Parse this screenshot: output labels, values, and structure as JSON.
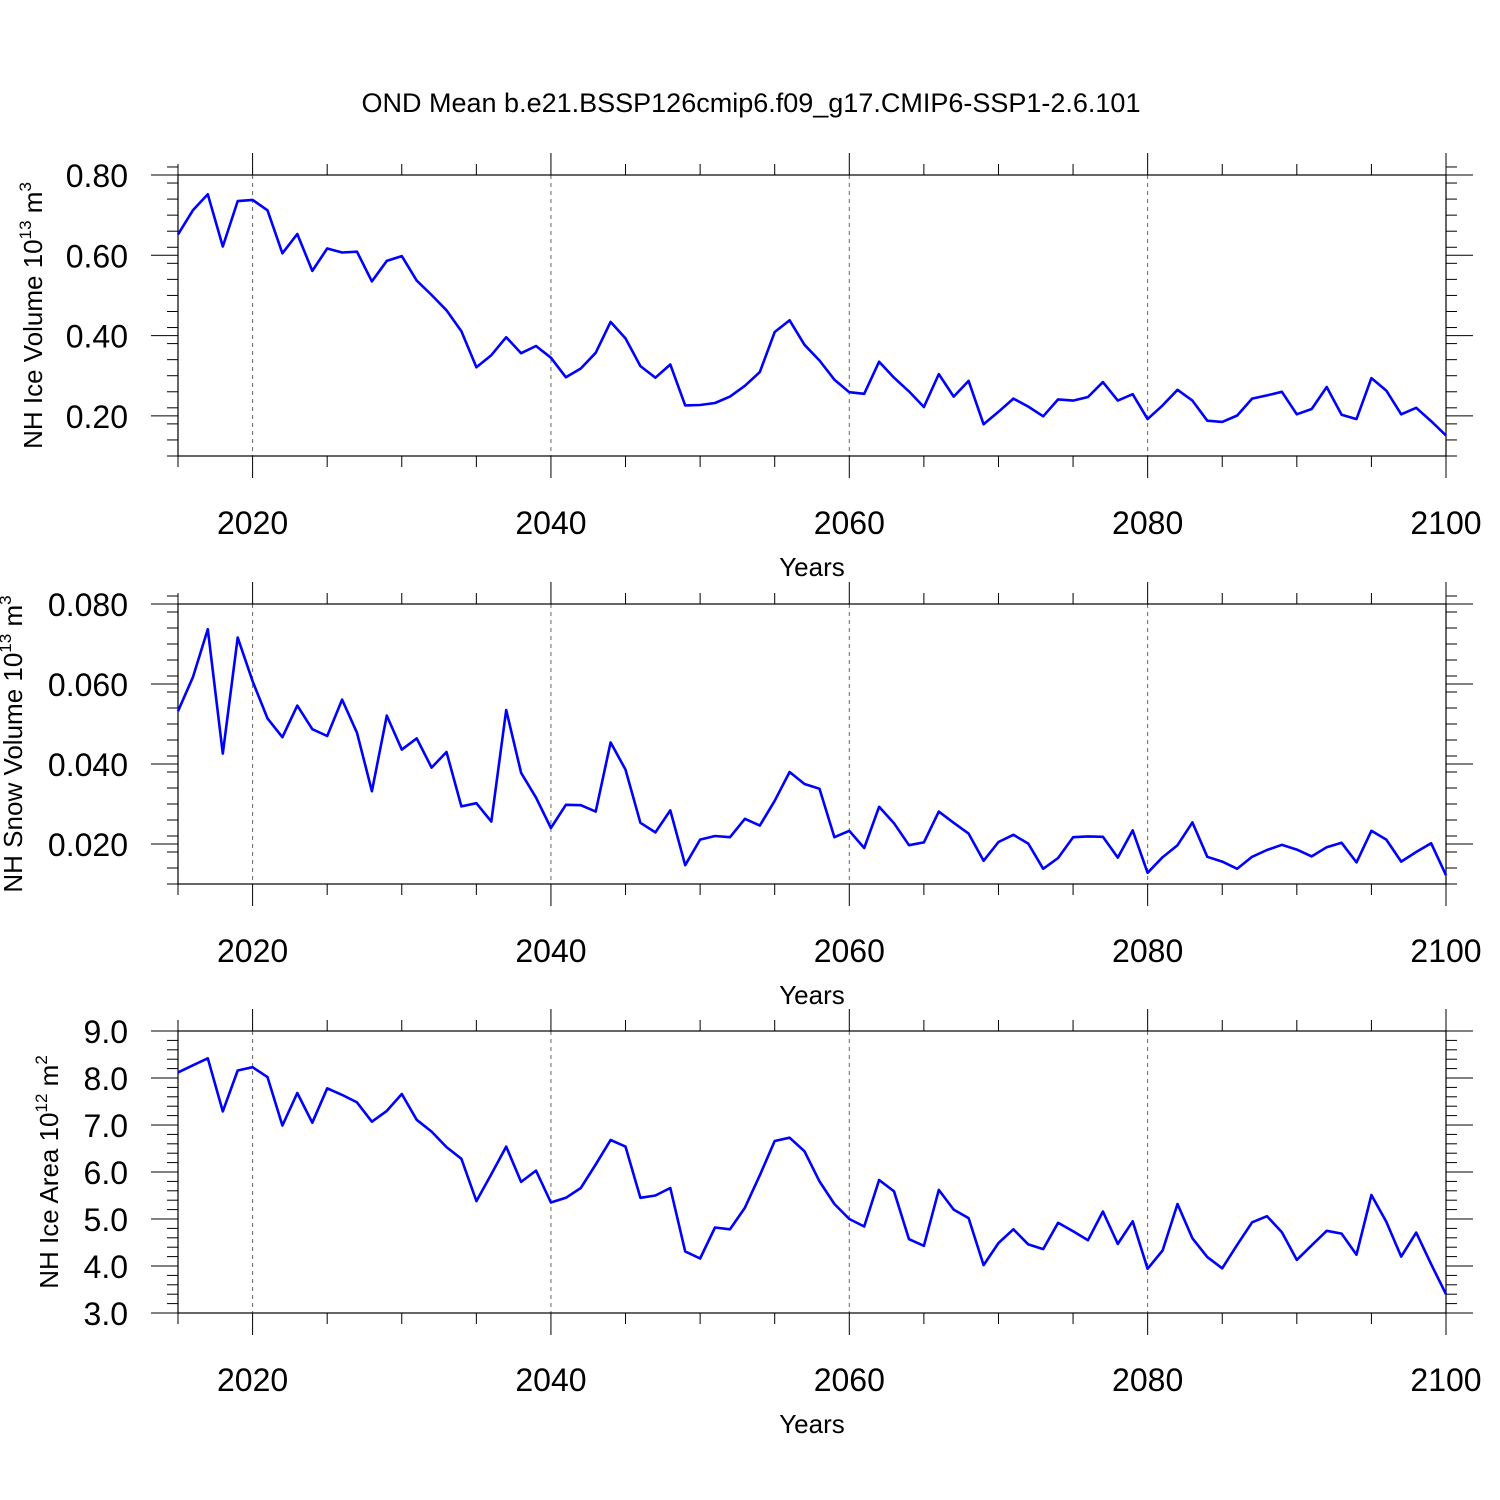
{
  "title": "OND Mean b.e21.BSSP126cmip6.f09_g17.CMIP6-SSP1-2.6.101",
  "line_color": "#0000ff",
  "chart_data": [
    {
      "type": "line",
      "ylabel": {
        "base": "NH Ice Volume 10",
        "exp": "13",
        "unit": " m",
        "unit_exp": "3"
      },
      "xlabel": "Years",
      "xlim": [
        2015,
        2100
      ],
      "ylim": [
        0.1,
        0.8
      ],
      "x_ticks": [
        2020,
        2040,
        2060,
        2080,
        2100
      ],
      "x_tick_labels": [
        "2020",
        "2040",
        "2060",
        "2080",
        "2100"
      ],
      "y_ticks": [
        0.2,
        0.4,
        0.6,
        0.8
      ],
      "y_tick_labels": [
        "0.20",
        "0.40",
        "0.60",
        "0.80"
      ],
      "y_minor_step": 0.04,
      "grid": "dashed vertical at major x ticks",
      "x_start": 2015,
      "values": [
        0.652,
        0.712,
        0.752,
        0.622,
        0.735,
        0.738,
        0.712,
        0.605,
        0.653,
        0.561,
        0.617,
        0.607,
        0.609,
        0.535,
        0.586,
        0.598,
        0.537,
        0.501,
        0.463,
        0.411,
        0.321,
        0.351,
        0.396,
        0.356,
        0.374,
        0.345,
        0.296,
        0.318,
        0.357,
        0.434,
        0.393,
        0.324,
        0.295,
        0.328,
        0.226,
        0.227,
        0.232,
        0.248,
        0.275,
        0.309,
        0.409,
        0.438,
        0.377,
        0.338,
        0.29,
        0.259,
        0.255,
        0.335,
        0.295,
        0.261,
        0.222,
        0.304,
        0.248,
        0.287,
        0.179,
        0.21,
        0.243,
        0.223,
        0.199,
        0.241,
        0.238,
        0.247,
        0.284,
        0.238,
        0.254,
        0.192,
        0.226,
        0.265,
        0.238,
        0.188,
        0.185,
        0.201,
        0.243,
        0.251,
        0.26,
        0.204,
        0.217,
        0.272,
        0.203,
        0.192,
        0.294,
        0.263,
        0.204,
        0.22,
        0.187,
        0.151
      ]
    },
    {
      "type": "line",
      "ylabel": {
        "base": "NH Snow Volume 10",
        "exp": "13",
        "unit": " m",
        "unit_exp": "3"
      },
      "xlabel": "Years",
      "xlim": [
        2015,
        2100
      ],
      "ylim": [
        0.01,
        0.08
      ],
      "x_ticks": [
        2020,
        2040,
        2060,
        2080,
        2100
      ],
      "x_tick_labels": [
        "2020",
        "2040",
        "2060",
        "2080",
        "2100"
      ],
      "y_ticks": [
        0.02,
        0.04,
        0.06,
        0.08
      ],
      "y_tick_labels": [
        "0.020",
        "0.040",
        "0.060",
        "0.080"
      ],
      "y_minor_step": 0.004,
      "grid": "dashed vertical at major x ticks",
      "x_start": 2015,
      "values": [
        0.0532,
        0.0617,
        0.0737,
        0.0426,
        0.0716,
        0.0607,
        0.0514,
        0.0467,
        0.0546,
        0.0487,
        0.047,
        0.0561,
        0.0478,
        0.0332,
        0.0521,
        0.0436,
        0.0464,
        0.0391,
        0.043,
        0.0294,
        0.0302,
        0.0256,
        0.0535,
        0.0378,
        0.0316,
        0.024,
        0.0298,
        0.0297,
        0.0281,
        0.0454,
        0.0386,
        0.0253,
        0.0229,
        0.0284,
        0.0147,
        0.0211,
        0.022,
        0.0217,
        0.0263,
        0.0246,
        0.0308,
        0.038,
        0.035,
        0.0338,
        0.0217,
        0.0233,
        0.019,
        0.0293,
        0.0252,
        0.0197,
        0.0204,
        0.0281,
        0.0253,
        0.0226,
        0.0158,
        0.0205,
        0.0223,
        0.0201,
        0.0138,
        0.0165,
        0.0217,
        0.0219,
        0.0218,
        0.0166,
        0.0234,
        0.0128,
        0.0167,
        0.0197,
        0.0254,
        0.0168,
        0.0156,
        0.0138,
        0.0168,
        0.0185,
        0.0198,
        0.0186,
        0.0169,
        0.0192,
        0.0203,
        0.0154,
        0.0233,
        0.0211,
        0.0156,
        0.018,
        0.0202,
        0.0122
      ]
    },
    {
      "type": "line",
      "ylabel": {
        "base": "NH Ice Area 10",
        "exp": "12",
        "unit": " m",
        "unit_exp": "2"
      },
      "xlabel": "Years",
      "xlim": [
        2015,
        2100
      ],
      "ylim": [
        3.0,
        9.0
      ],
      "x_ticks": [
        2020,
        2040,
        2060,
        2080,
        2100
      ],
      "x_tick_labels": [
        "2020",
        "2040",
        "2060",
        "2080",
        "2100"
      ],
      "y_ticks": [
        3.0,
        4.0,
        5.0,
        6.0,
        7.0,
        8.0,
        9.0
      ],
      "y_tick_labels": [
        "3.0",
        "4.0",
        "5.0",
        "6.0",
        "7.0",
        "8.0",
        "9.0"
      ],
      "y_minor_step": 0.2,
      "grid": "dashed vertical at major x ticks",
      "x_start": 2015,
      "values": [
        8.12,
        8.27,
        8.42,
        7.29,
        8.16,
        8.23,
        8.02,
        6.99,
        7.68,
        7.05,
        7.78,
        7.64,
        7.48,
        7.07,
        7.3,
        7.66,
        7.11,
        6.86,
        6.53,
        6.28,
        5.38,
        5.95,
        6.54,
        5.79,
        6.03,
        5.35,
        5.45,
        5.66,
        6.16,
        6.68,
        6.54,
        5.45,
        5.5,
        5.66,
        4.31,
        4.16,
        4.82,
        4.78,
        5.24,
        5.93,
        6.66,
        6.73,
        6.44,
        5.8,
        5.32,
        5.0,
        4.84,
        5.83,
        5.59,
        4.57,
        4.43,
        5.62,
        5.2,
        5.02,
        4.02,
        4.49,
        4.78,
        4.46,
        4.36,
        4.92,
        4.74,
        4.55,
        5.16,
        4.47,
        4.95,
        3.94,
        4.33,
        5.32,
        4.59,
        4.19,
        3.95,
        4.45,
        4.93,
        5.06,
        4.72,
        4.13,
        4.44,
        4.75,
        4.69,
        4.24,
        5.51,
        4.94,
        4.2,
        4.71,
        4.04,
        3.4
      ]
    }
  ]
}
